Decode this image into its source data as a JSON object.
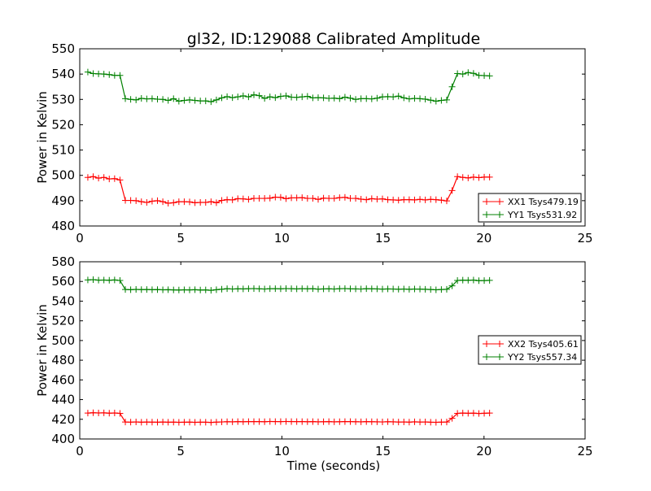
{
  "chart_data": [
    {
      "type": "line",
      "title": "gl32, ID:129088 Calibrated Amplitude",
      "xlabel": "",
      "ylabel": "Power in Kelvin",
      "xlim": [
        0,
        25
      ],
      "ylim": [
        480,
        550
      ],
      "xticks": [
        0,
        5,
        10,
        15,
        20,
        25
      ],
      "yticks": [
        480,
        490,
        500,
        510,
        520,
        530,
        540,
        550
      ],
      "x_start": 0.4,
      "x_step": 0.265,
      "legend_position": "lower-right",
      "series": [
        {
          "name": "XX1 Tsys479.19",
          "color": "#ff0000",
          "marker": "+",
          "values": [
            499.2,
            499.5,
            498.9,
            499.2,
            498.6,
            498.7,
            498.2,
            490.1,
            490.1,
            490.0,
            489.6,
            489.3,
            489.8,
            490.0,
            489.6,
            489.0,
            489.2,
            489.6,
            489.6,
            489.5,
            489.2,
            489.3,
            489.3,
            489.6,
            489.2,
            490.1,
            490.4,
            490.3,
            490.8,
            490.7,
            490.5,
            490.9,
            490.9,
            490.9,
            491.0,
            491.4,
            491.3,
            490.8,
            491.1,
            491.1,
            491.2,
            490.9,
            490.9,
            490.5,
            491.0,
            490.9,
            490.9,
            491.2,
            491.3,
            490.9,
            490.9,
            490.6,
            490.4,
            490.8,
            490.6,
            490.7,
            490.4,
            490.3,
            490.2,
            490.4,
            490.4,
            490.3,
            490.5,
            490.3,
            490.5,
            490.4,
            490.2,
            489.9,
            494.0,
            499.5,
            499.2,
            499.0,
            499.3,
            499.1,
            499.3,
            499.3
          ]
        },
        {
          "name": "YY1 Tsys531.92",
          "color": "#008000",
          "marker": "+",
          "values": [
            540.8,
            540.2,
            540.1,
            540.0,
            539.8,
            539.5,
            539.5,
            530.3,
            530.0,
            529.8,
            530.4,
            530.2,
            530.3,
            530.1,
            530.0,
            529.6,
            530.3,
            529.3,
            529.6,
            529.8,
            529.6,
            529.4,
            529.4,
            529.1,
            529.8,
            530.6,
            531.1,
            530.7,
            531.0,
            531.4,
            531.0,
            531.8,
            531.5,
            530.4,
            531.0,
            530.7,
            531.2,
            531.4,
            530.9,
            530.8,
            531.0,
            531.2,
            530.6,
            530.7,
            530.6,
            530.4,
            530.5,
            530.3,
            530.9,
            530.5,
            530.0,
            530.3,
            530.3,
            530.2,
            530.5,
            531.0,
            531.1,
            531.0,
            531.3,
            530.6,
            530.2,
            530.4,
            530.3,
            530.1,
            529.7,
            529.3,
            529.6,
            529.8,
            535.0,
            540.2,
            540.0,
            540.6,
            540.3,
            539.5,
            539.4,
            539.3
          ]
        }
      ]
    },
    {
      "type": "line",
      "title": "",
      "xlabel": "Time (seconds)",
      "ylabel": "Power in Kelvin",
      "xlim": [
        0,
        25
      ],
      "ylim": [
        400,
        580
      ],
      "xticks": [
        0,
        5,
        10,
        15,
        20,
        25
      ],
      "yticks": [
        400,
        420,
        440,
        460,
        480,
        500,
        520,
        540,
        560,
        580
      ],
      "x_start": 0.4,
      "x_step": 0.265,
      "legend_position": "center-right",
      "series": [
        {
          "name": "XX2 Tsys405.61",
          "color": "#ff0000",
          "marker": "+",
          "values": [
            426.3,
            426.6,
            426.4,
            426.5,
            426.2,
            426.4,
            426.0,
            417.2,
            417.1,
            417.3,
            417.0,
            417.2,
            417.1,
            417.0,
            417.2,
            417.0,
            417.1,
            416.9,
            417.0,
            417.1,
            416.9,
            417.0,
            417.0,
            416.8,
            417.1,
            417.3,
            417.5,
            417.4,
            417.6,
            417.5,
            417.6,
            417.7,
            417.6,
            417.5,
            417.8,
            417.7,
            417.6,
            417.8,
            417.7,
            417.6,
            417.7,
            417.5,
            417.6,
            417.4,
            417.5,
            417.6,
            417.4,
            417.5,
            417.7,
            417.6,
            417.5,
            417.4,
            417.6,
            417.5,
            417.4,
            417.3,
            417.5,
            417.4,
            417.2,
            417.3,
            417.1,
            417.4,
            417.2,
            417.3,
            417.0,
            416.9,
            417.1,
            417.2,
            421.0,
            426.0,
            426.3,
            426.1,
            426.2,
            425.9,
            426.1,
            426.3
          ]
        },
        {
          "name": "YY2 Tsys557.34",
          "color": "#008000",
          "marker": "+",
          "values": [
            561.5,
            561.8,
            561.3,
            561.4,
            561.2,
            561.5,
            561.0,
            551.8,
            551.6,
            551.9,
            551.7,
            551.8,
            551.6,
            551.7,
            551.5,
            551.6,
            551.4,
            551.3,
            551.5,
            551.4,
            551.6,
            551.3,
            551.4,
            551.0,
            551.6,
            552.1,
            552.6,
            552.3,
            552.5,
            552.4,
            552.6,
            552.8,
            552.5,
            552.3,
            552.6,
            552.7,
            552.5,
            552.8,
            552.6,
            552.4,
            552.7,
            552.5,
            552.6,
            552.2,
            552.4,
            552.5,
            552.3,
            552.6,
            552.8,
            552.5,
            552.4,
            552.3,
            552.6,
            552.5,
            552.4,
            552.2,
            552.4,
            552.3,
            552.1,
            552.3,
            552.0,
            552.3,
            552.2,
            552.0,
            551.8,
            551.5,
            551.8,
            552.0,
            555.5,
            561.0,
            561.3,
            561.2,
            561.4,
            560.8,
            560.9,
            561.1
          ]
        }
      ]
    }
  ]
}
